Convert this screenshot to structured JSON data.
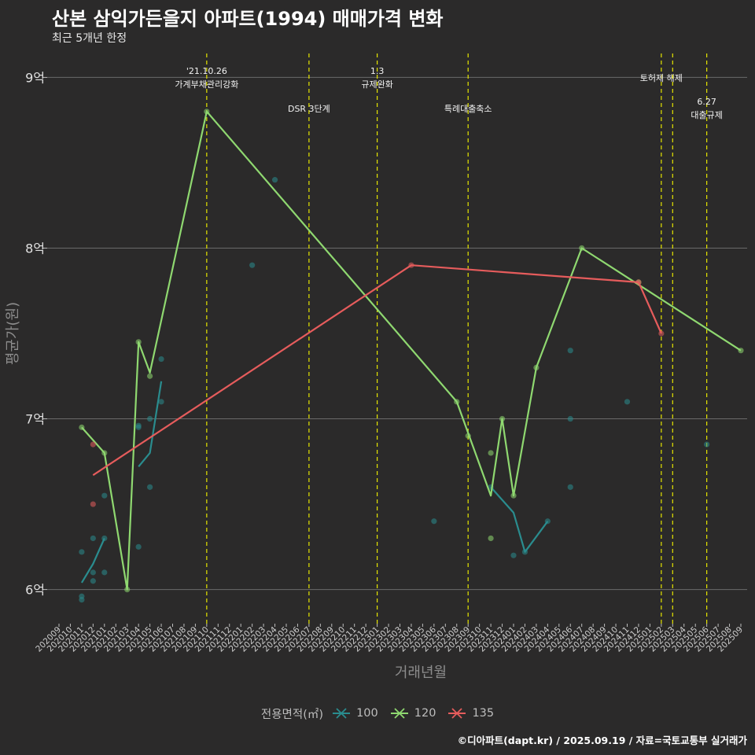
{
  "title": "산본 삼익가든을지 아파트(1994) 매매가격 변화",
  "subtitle": "최근 5개년 한정",
  "caption": "©디아파트(dapt.kr) / 2025.09.19 / 자료=국토교통부 실거래가",
  "chart_data": {
    "type": "line",
    "xlabel": "거래년월",
    "ylabel": "평균가(원)",
    "ylim": [
      5.8,
      9.2
    ],
    "grid": true,
    "legend_title": "전용면적(㎡)",
    "legend_position": "bottom",
    "x_categories": [
      "202009",
      "202010",
      "202011",
      "202012",
      "202101",
      "202102",
      "202103",
      "202104",
      "202105",
      "202106",
      "202107",
      "202108",
      "202109",
      "202110",
      "202111",
      "202112",
      "202201",
      "202202",
      "202203",
      "202204",
      "202205",
      "202206",
      "202207",
      "202208",
      "202209",
      "202210",
      "202211",
      "202212",
      "202301",
      "202302",
      "202303",
      "202304",
      "202305",
      "202306",
      "202307",
      "202308",
      "202309",
      "202310",
      "202311",
      "202312",
      "202401",
      "202402",
      "202403",
      "202404",
      "202405",
      "202406",
      "202407",
      "202408",
      "202409",
      "202410",
      "202411",
      "202412",
      "202501",
      "202502",
      "202503",
      "202504",
      "202505",
      "202506",
      "202507",
      "202508",
      "202509"
    ],
    "y_ticks": [
      {
        "value": 6,
        "label": "6억"
      },
      {
        "value": 7,
        "label": "7억"
      },
      {
        "value": 8,
        "label": "8억"
      },
      {
        "value": 9,
        "label": "9억"
      }
    ],
    "series": [
      {
        "name": "100",
        "color": "#2a8c8e",
        "line": [
          [
            "202011",
            6.04
          ],
          [
            "202012",
            6.15
          ],
          [
            "202101",
            6.3
          ],
          null,
          [
            "202104",
            6.72
          ],
          [
            "202105",
            6.8
          ],
          [
            "202106",
            7.22
          ],
          null,
          [
            "202311",
            6.6
          ],
          [
            "202401",
            6.45
          ],
          [
            "202402",
            6.22
          ],
          [
            "202404",
            6.4
          ]
        ],
        "points": [
          [
            "202011",
            6.22
          ],
          [
            "202011",
            5.96
          ],
          [
            "202011",
            5.94
          ],
          [
            "202012",
            6.3
          ],
          [
            "202012",
            6.1
          ],
          [
            "202012",
            6.05
          ],
          [
            "202101",
            6.3
          ],
          [
            "202101",
            6.55
          ],
          [
            "202101",
            6.1
          ],
          [
            "202104",
            6.25
          ],
          [
            "202104",
            6.96
          ],
          [
            "202104",
            6.95
          ],
          [
            "202105",
            7.0
          ],
          [
            "202105",
            6.6
          ],
          [
            "202106",
            7.35
          ],
          [
            "202106",
            7.1
          ],
          [
            "202202",
            7.9
          ],
          [
            "202204",
            8.4
          ],
          [
            "202306",
            6.4
          ],
          [
            "202311",
            6.6
          ],
          [
            "202401",
            6.2
          ],
          [
            "202402",
            6.22
          ],
          [
            "202404",
            6.4
          ],
          [
            "202406",
            6.6
          ],
          [
            "202406",
            7.0
          ],
          [
            "202406",
            7.4
          ],
          [
            "202411",
            7.1
          ],
          [
            "202506",
            6.85
          ]
        ]
      },
      {
        "name": "120",
        "color": "#8fd870",
        "line": [
          [
            "202011",
            6.95
          ],
          [
            "202101",
            6.8
          ],
          [
            "202103",
            6.0
          ],
          [
            "202104",
            7.45
          ],
          [
            "202105",
            7.27
          ],
          [
            "202110",
            8.8
          ],
          [
            "202308",
            7.1
          ],
          [
            "202311",
            6.55
          ],
          [
            "202312",
            7.0
          ],
          [
            "202401",
            6.55
          ],
          [
            "202403",
            7.3
          ],
          [
            "202407",
            8.0
          ],
          [
            "202509",
            7.4
          ]
        ],
        "points": [
          [
            "202011",
            6.95
          ],
          [
            "202101",
            6.8
          ],
          [
            "202103",
            6.0
          ],
          [
            "202104",
            7.45
          ],
          [
            "202105",
            7.25
          ],
          [
            "202110",
            8.8
          ],
          [
            "202308",
            7.1
          ],
          [
            "202309",
            6.9
          ],
          [
            "202311",
            6.3
          ],
          [
            "202311",
            6.8
          ],
          [
            "202312",
            7.0
          ],
          [
            "202401",
            6.55
          ],
          [
            "202403",
            7.3
          ],
          [
            "202407",
            8.0
          ],
          [
            "202412",
            7.8
          ],
          [
            "202509",
            7.4
          ]
        ]
      },
      {
        "name": "135",
        "color": "#e65c5c",
        "line": [
          [
            "202012",
            6.67
          ],
          [
            "202304",
            7.9
          ],
          [
            "202412",
            7.8
          ],
          [
            "202502",
            7.5
          ]
        ],
        "points": [
          [
            "202012",
            6.85
          ],
          [
            "202012",
            6.5
          ],
          [
            "202304",
            7.9
          ],
          [
            "202412",
            7.8
          ],
          [
            "202502",
            7.5
          ]
        ]
      }
    ],
    "events": [
      {
        "x": "202110",
        "lines": [
          "'21.10.26",
          "가계부채관리강화"
        ],
        "row": 1
      },
      {
        "x": "202207",
        "lines": [
          "DSR 3단계"
        ],
        "row": 3
      },
      {
        "x": "202301",
        "lines": [
          "1.3",
          "규제완화"
        ],
        "row": 1
      },
      {
        "x": "202309",
        "lines": [
          "특례대출축소"
        ],
        "row": 3
      },
      {
        "x": "202502",
        "lines": [
          "토허제 해제"
        ],
        "row": 2
      },
      {
        "x": "202503",
        "lines": [],
        "row": 0
      },
      {
        "x": "202506",
        "lines": [
          "6.27",
          "대출규제"
        ],
        "row": 4
      }
    ]
  }
}
